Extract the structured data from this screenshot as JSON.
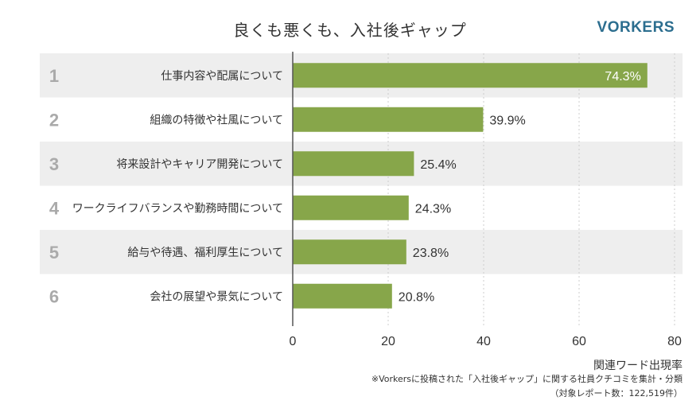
{
  "header": {
    "title": "良くも悪くも、入社後ギャップ",
    "logo": "VORKERS"
  },
  "footnotes": {
    "line1": "※Vorkersに投稿された「入社後ギャップ」に関する社員クチコミを集計・分類",
    "line2": "（対象レポート数：122,519件）"
  },
  "colors": {
    "bar": "#87a64a",
    "band": "#eeeeee",
    "rank": "#aaaaaa",
    "grid": "#cccccc",
    "axis": "#555555"
  },
  "chart_data": {
    "type": "bar",
    "orientation": "horizontal",
    "title": "良くも悪くも、入社後ギャップ",
    "xlabel": "関連ワード出現率",
    "xlim": [
      0,
      80
    ],
    "xticks": [
      "0",
      "20",
      "40",
      "60",
      "80"
    ],
    "grid": true,
    "ranks": [
      "1",
      "2",
      "3",
      "4",
      "5",
      "6"
    ],
    "categories": [
      "仕事内容や配属について",
      "組織の特徴や社風について",
      "将来設計やキャリア開発について",
      "ワークライフバランスや勤務時間について",
      "給与や待遇、福利厚生について",
      "会社の展望や景気について"
    ],
    "values": [
      74.3,
      39.9,
      25.4,
      24.3,
      23.8,
      20.8
    ],
    "value_labels": [
      "74.3%",
      "39.9%",
      "25.4%",
      "24.3%",
      "23.8%",
      "20.8%"
    ]
  }
}
